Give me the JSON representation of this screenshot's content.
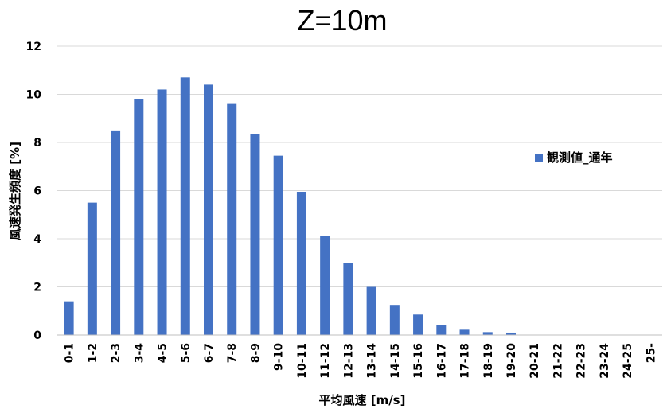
{
  "chart_data": {
    "type": "bar",
    "title": "Z=10m",
    "xlabel": "平均風速 [m/s]",
    "ylabel": "風速発生頻度 [%]",
    "ylim": [
      0,
      12
    ],
    "yticks": [
      0,
      2,
      4,
      6,
      8,
      10,
      12
    ],
    "grid": true,
    "legend_position": "right",
    "categories": [
      "0-1",
      "1-2",
      "2-3",
      "3-4",
      "4-5",
      "5-6",
      "6-7",
      "7-8",
      "8-9",
      "9-10",
      "10-11",
      "11-12",
      "12-13",
      "13-14",
      "14-15",
      "15-16",
      "16-17",
      "17-18",
      "18-19",
      "19-20",
      "20-21",
      "21-22",
      "22-23",
      "23-24",
      "24-25",
      "25-"
    ],
    "series": [
      {
        "name": "観測値_通年",
        "color": "#4472C4",
        "values": [
          1.4,
          5.5,
          8.5,
          9.8,
          10.2,
          10.7,
          10.4,
          9.6,
          8.35,
          7.45,
          5.95,
          4.1,
          3.0,
          2.0,
          1.25,
          0.85,
          0.42,
          0.22,
          0.12,
          0.1,
          0,
          0,
          0,
          0,
          0,
          0
        ]
      }
    ]
  }
}
